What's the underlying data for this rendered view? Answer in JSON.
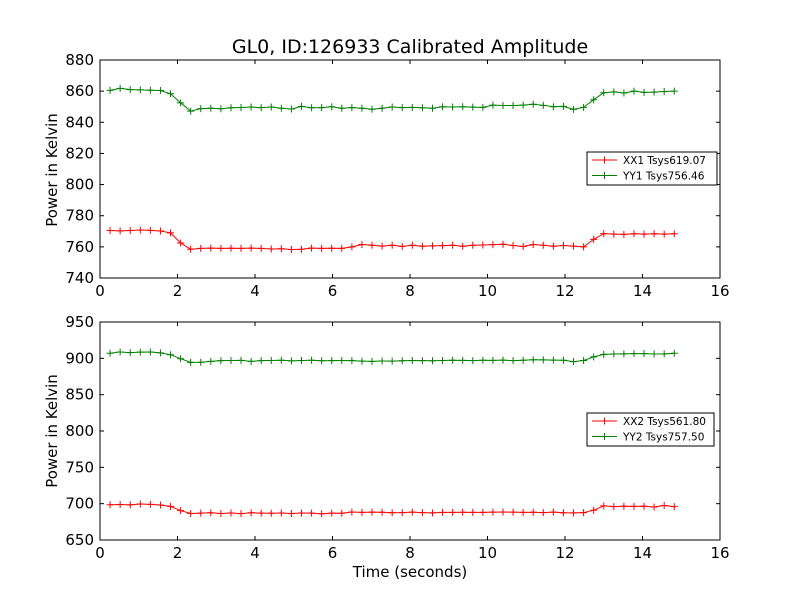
{
  "chart_data": [
    {
      "type": "line",
      "title": "GL0, ID:126933 Calibrated Amplitude",
      "xlabel": "",
      "ylabel": "Power in Kelvin",
      "xlim": [
        0,
        16
      ],
      "ylim": [
        740,
        880
      ],
      "xticks": [
        0,
        2,
        4,
        6,
        8,
        10,
        12,
        14,
        16
      ],
      "yticks": [
        740,
        760,
        780,
        800,
        820,
        840,
        860,
        880
      ],
      "legend_position": "right",
      "x": [
        0.26,
        0.52,
        0.78,
        1.04,
        1.3,
        1.56,
        1.82,
        2.08,
        2.34,
        2.6,
        2.86,
        3.12,
        3.38,
        3.64,
        3.9,
        4.16,
        4.42,
        4.68,
        4.94,
        5.2,
        5.46,
        5.72,
        5.98,
        6.24,
        6.5,
        6.76,
        7.02,
        7.28,
        7.54,
        7.8,
        8.06,
        8.32,
        8.58,
        8.84,
        9.1,
        9.36,
        9.62,
        9.88,
        10.14,
        10.4,
        10.66,
        10.92,
        11.18,
        11.44,
        11.7,
        11.96,
        12.22,
        12.48,
        12.74,
        13.0,
        13.26,
        13.52,
        13.78,
        14.04,
        14.3,
        14.56,
        14.82
      ],
      "series": [
        {
          "name": "XX1 Tsys619.07",
          "color": "#ff0000",
          "values": [
            770.5,
            770.3,
            770.5,
            770.8,
            770.6,
            770.2,
            769.0,
            762.5,
            758.5,
            759.0,
            759.2,
            759.0,
            759.1,
            759.0,
            759.2,
            759.0,
            758.6,
            758.8,
            758.3,
            758.5,
            759.2,
            759.0,
            759.1,
            759.0,
            760.0,
            761.5,
            761.0,
            760.5,
            761.0,
            760.3,
            761.0,
            760.4,
            760.6,
            760.8,
            761.0,
            760.4,
            761.0,
            761.2,
            761.4,
            761.7,
            760.9,
            760.2,
            761.5,
            761.0,
            760.4,
            760.9,
            760.5,
            760.0,
            764.8,
            768.5,
            768.2,
            768.0,
            768.4,
            768.2,
            768.4,
            768.2,
            768.4
          ]
        },
        {
          "name": "YY1 Tsys756.46",
          "color": "#008000",
          "values": [
            860.5,
            861.8,
            861.0,
            860.8,
            860.6,
            860.4,
            858.3,
            852.5,
            847.2,
            848.8,
            849.0,
            848.7,
            849.3,
            849.5,
            849.8,
            849.4,
            849.8,
            849.0,
            848.5,
            850.2,
            849.3,
            849.4,
            850.0,
            849.0,
            849.4,
            849.0,
            848.4,
            849.0,
            849.8,
            849.4,
            849.6,
            849.3,
            849.0,
            850.0,
            849.8,
            850.0,
            849.7,
            849.6,
            851.0,
            850.8,
            850.8,
            851.0,
            851.6,
            850.9,
            850.0,
            850.2,
            848.3,
            849.6,
            854.5,
            859.0,
            859.5,
            858.8,
            860.0,
            859.2,
            859.4,
            859.8,
            860.0
          ]
        }
      ]
    },
    {
      "type": "line",
      "title": "",
      "xlabel": "Time (seconds)",
      "ylabel": "Power in Kelvin",
      "xlim": [
        0,
        16
      ],
      "ylim": [
        650,
        950
      ],
      "xticks": [
        0,
        2,
        4,
        6,
        8,
        10,
        12,
        14,
        16
      ],
      "yticks": [
        650,
        700,
        750,
        800,
        850,
        900,
        950
      ],
      "legend_position": "right",
      "x": [
        0.26,
        0.52,
        0.78,
        1.04,
        1.3,
        1.56,
        1.82,
        2.08,
        2.34,
        2.6,
        2.86,
        3.12,
        3.38,
        3.64,
        3.9,
        4.16,
        4.42,
        4.68,
        4.94,
        5.2,
        5.46,
        5.72,
        5.98,
        6.24,
        6.5,
        6.76,
        7.02,
        7.28,
        7.54,
        7.8,
        8.06,
        8.32,
        8.58,
        8.84,
        9.1,
        9.36,
        9.62,
        9.88,
        10.14,
        10.4,
        10.66,
        10.92,
        11.18,
        11.44,
        11.7,
        11.96,
        12.22,
        12.48,
        12.74,
        13.0,
        13.26,
        13.52,
        13.78,
        14.04,
        14.3,
        14.56,
        14.82
      ],
      "series": [
        {
          "name": "XX2 Tsys561.80",
          "color": "#ff0000",
          "values": [
            698.5,
            698.8,
            698.3,
            699.5,
            699.0,
            698.2,
            696.3,
            690.5,
            686.5,
            687.0,
            687.5,
            686.5,
            687.2,
            686.3,
            687.5,
            687.0,
            686.8,
            687.1,
            686.5,
            687.2,
            687.0,
            686.2,
            687.0,
            686.8,
            688.5,
            688.0,
            688.4,
            688.2,
            687.5,
            687.6,
            688.4,
            687.6,
            687.4,
            688.0,
            688.0,
            688.2,
            688.0,
            688.0,
            688.4,
            688.5,
            688.3,
            688.0,
            688.2,
            687.6,
            688.4,
            687.5,
            687.4,
            687.6,
            691.0,
            697.0,
            696.0,
            696.5,
            696.2,
            696.5,
            695.4,
            697.5,
            696.0
          ]
        },
        {
          "name": "YY2 Tsys757.50",
          "color": "#008000",
          "values": [
            907.0,
            908.8,
            907.8,
            908.5,
            908.8,
            907.5,
            905.0,
            899.5,
            894.5,
            894.6,
            895.8,
            896.8,
            897.0,
            897.2,
            895.8,
            896.8,
            897.0,
            897.3,
            896.5,
            897.0,
            897.4,
            896.7,
            896.9,
            897.0,
            896.8,
            896.2,
            895.8,
            896.4,
            896.1,
            896.6,
            897.0,
            896.8,
            896.7,
            897.0,
            897.4,
            897.2,
            896.8,
            897.3,
            897.2,
            897.5,
            896.8,
            897.4,
            898.0,
            897.9,
            897.5,
            897.3,
            895.5,
            897.0,
            902.0,
            905.5,
            906.0,
            906.2,
            906.5,
            906.5,
            906.0,
            906.1,
            907.0
          ]
        }
      ]
    }
  ]
}
